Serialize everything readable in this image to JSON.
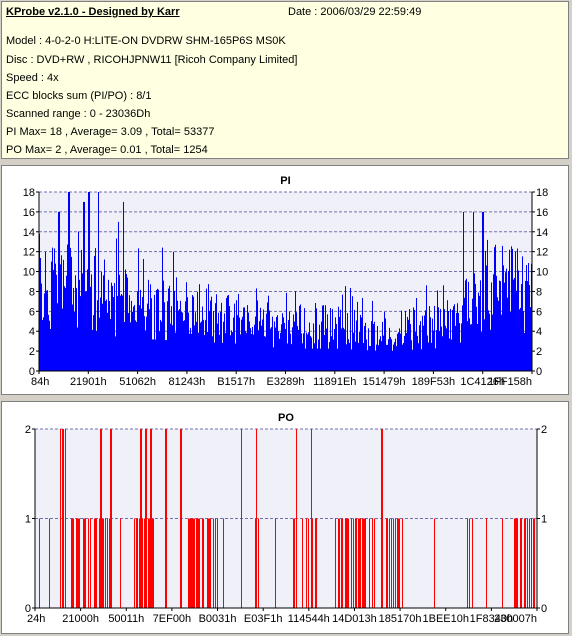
{
  "info": {
    "title": "KProbe v2.1.0 - Designed by Karr",
    "date": "Date : 2006/03/29 22:59:49",
    "lines": [
      "Model : 4-0-2-0 H:LITE-ON DVDRW SHM-165P6S MS0K",
      "Disc : DVD+RW , RICOHJPNW11 [Ricoh Company Limited]",
      "Speed : 4x",
      "ECC blocks sum (PI/PO) : 8/1",
      "Scanned range : 0 - 23036Dh",
      "PI Max= 18 , Average= 3.09 , Total= 53377",
      "PO Max= 2 , Average= 0.01 , Total= 1254"
    ]
  },
  "chart_data": [
    {
      "type": "bar",
      "title": "PI",
      "ylim": [
        0,
        18
      ],
      "yticks": [
        0,
        2,
        4,
        6,
        8,
        10,
        12,
        14,
        16,
        18
      ],
      "xtick_labels": [
        "84h",
        "21901h",
        "51062h",
        "81243h",
        "B1517h",
        "E3289h",
        "11891Eh",
        "151479h",
        "189F53h",
        "1C4126h",
        "1FF158h"
      ],
      "grid": true,
      "color": "#0000ff",
      "profile_x_fraction": [
        0.0,
        0.05,
        0.1,
        0.15,
        0.2,
        0.3,
        0.4,
        0.5,
        0.6,
        0.7,
        0.8,
        0.85,
        0.9,
        0.95,
        1.0
      ],
      "profile_avg": [
        8,
        9,
        8.5,
        7,
        6.5,
        6,
        5.5,
        4.5,
        4.5,
        4,
        4.5,
        5.5,
        8,
        9,
        7
      ],
      "peaks": [
        {
          "x_fraction": 0.06,
          "value": 18
        },
        {
          "x_fraction": 0.1,
          "value": 18
        },
        {
          "x_fraction": 0.12,
          "value": 18
        },
        {
          "x_fraction": 0.09,
          "value": 17
        },
        {
          "x_fraction": 0.17,
          "value": 17
        },
        {
          "x_fraction": 0.04,
          "value": 16
        },
        {
          "x_fraction": 0.16,
          "value": 15
        },
        {
          "x_fraction": 0.86,
          "value": 16
        },
        {
          "x_fraction": 0.88,
          "value": 16
        },
        {
          "x_fraction": 0.9,
          "value": 16
        }
      ]
    },
    {
      "type": "bar",
      "title": "PO",
      "ylim": [
        0,
        2
      ],
      "yticks": [
        0,
        1,
        2
      ],
      "xtick_labels": [
        "24h",
        "21000h",
        "50011h",
        "7EF00h",
        "B0031h",
        "E03F1h",
        "114544h",
        "14D013h",
        "185170h",
        "1BEE10h",
        "1F8340h",
        "230007h"
      ],
      "grid": true,
      "color": "#ff0000",
      "spikes_at_2_x_fraction": [
        0.05,
        0.055,
        0.06,
        0.13,
        0.15,
        0.21,
        0.22,
        0.23,
        0.26,
        0.29,
        0.41,
        0.44,
        0.52,
        0.55,
        0.69
      ],
      "density_of_1": 0.45
    }
  ]
}
